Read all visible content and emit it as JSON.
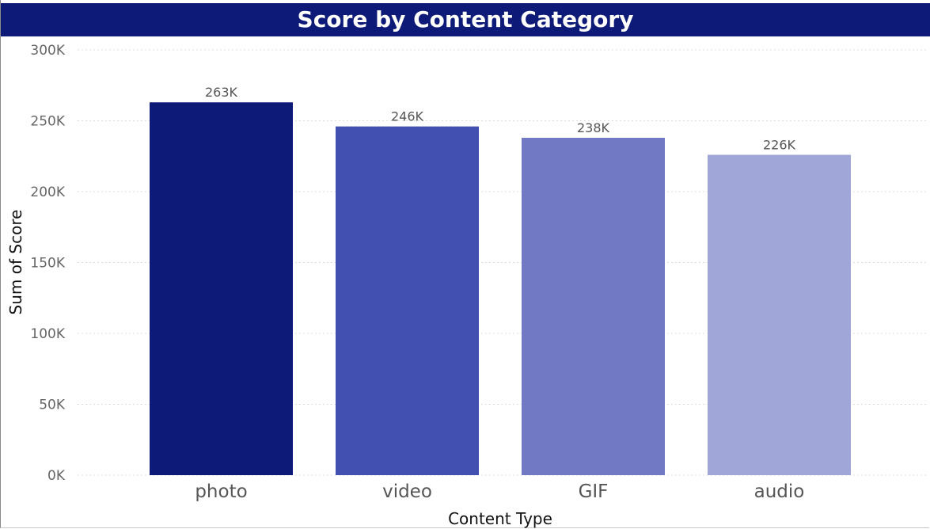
{
  "chart_data": {
    "type": "bar",
    "title": "Score by Content Category",
    "xlabel": "Content Type",
    "ylabel": "Sum of Score",
    "categories": [
      "photo",
      "video",
      "GIF",
      "audio"
    ],
    "values": [
      263000,
      246000,
      238000,
      226000
    ],
    "data_labels": [
      "263K",
      "246K",
      "238K",
      "226K"
    ],
    "bar_colors": [
      "#0e1a78",
      "#4150b1",
      "#7179c5",
      "#a0a6d8"
    ],
    "ylim": [
      0,
      300000
    ],
    "yticks": [
      0,
      50000,
      100000,
      150000,
      200000,
      250000,
      300000
    ],
    "ytick_labels": [
      "0K",
      "50K",
      "100K",
      "150K",
      "200K",
      "250K",
      "300K"
    ],
    "grid": true,
    "legend": "none"
  }
}
